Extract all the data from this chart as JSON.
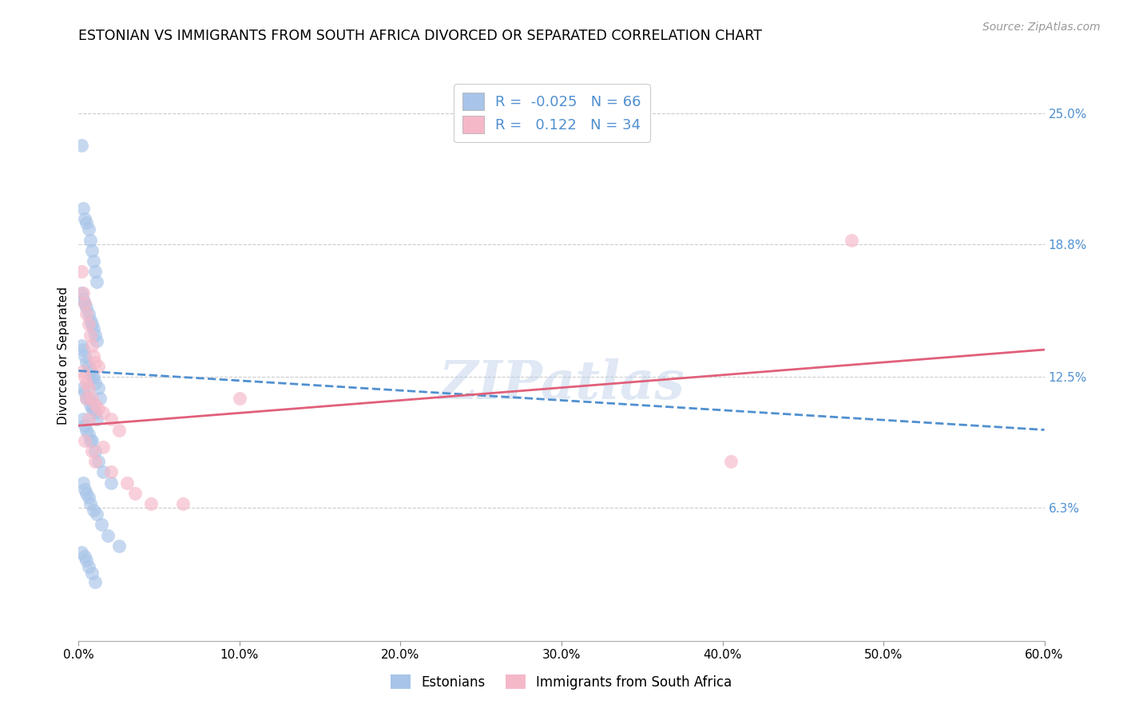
{
  "title": "ESTONIAN VS IMMIGRANTS FROM SOUTH AFRICA DIVORCED OR SEPARATED CORRELATION CHART",
  "source": "Source: ZipAtlas.com",
  "xlabel_ticks": [
    "0.0%",
    "10.0%",
    "20.0%",
    "30.0%",
    "40.0%",
    "50.0%",
    "60.0%"
  ],
  "xlabel_tick_vals": [
    0.0,
    10.0,
    20.0,
    30.0,
    40.0,
    50.0,
    60.0
  ],
  "ylabel_ticks": [
    "6.3%",
    "12.5%",
    "18.8%",
    "25.0%"
  ],
  "ylabel_tick_vals": [
    6.3,
    12.5,
    18.8,
    25.0
  ],
  "xlim": [
    0,
    60
  ],
  "ylim": [
    0,
    27
  ],
  "ylabel": "Divorced or Separated",
  "legend_labels": [
    "Estonians",
    "Immigrants from South Africa"
  ],
  "R_estonian": -0.025,
  "N_estonian": 66,
  "R_immigrant": 0.122,
  "N_immigrant": 34,
  "blue_color": "#a8c4e8",
  "pink_color": "#f5b8c8",
  "blue_line_color": "#5090d0",
  "pink_line_color": "#e0607a",
  "watermark": "ZIPatlas",
  "estonian_x": [
    0.2,
    0.3,
    0.4,
    0.5,
    0.6,
    0.7,
    0.8,
    0.9,
    1.0,
    1.1,
    0.2,
    0.3,
    0.4,
    0.5,
    0.6,
    0.7,
    0.8,
    0.9,
    1.0,
    1.1,
    0.2,
    0.3,
    0.4,
    0.5,
    0.6,
    0.7,
    0.8,
    0.9,
    1.0,
    1.2,
    0.3,
    0.4,
    0.5,
    0.6,
    0.7,
    0.8,
    0.9,
    1.0,
    1.1,
    1.3,
    0.3,
    0.4,
    0.5,
    0.6,
    0.7,
    0.8,
    1.0,
    1.2,
    1.5,
    2.0,
    0.3,
    0.4,
    0.5,
    0.6,
    0.7,
    0.9,
    1.1,
    1.4,
    1.8,
    2.5,
    0.2,
    0.4,
    0.5,
    0.6,
    0.8,
    1.0
  ],
  "estonian_y": [
    23.5,
    20.5,
    20.0,
    19.8,
    19.5,
    19.0,
    18.5,
    18.0,
    17.5,
    17.0,
    16.5,
    16.2,
    16.0,
    15.8,
    15.5,
    15.2,
    15.0,
    14.8,
    14.5,
    14.2,
    14.0,
    13.8,
    13.5,
    13.2,
    13.0,
    12.8,
    12.5,
    12.5,
    12.2,
    12.0,
    12.0,
    11.8,
    11.5,
    11.5,
    11.2,
    11.0,
    11.0,
    10.8,
    10.5,
    11.5,
    10.5,
    10.2,
    10.0,
    9.8,
    9.5,
    9.5,
    9.0,
    8.5,
    8.0,
    7.5,
    7.5,
    7.2,
    7.0,
    6.8,
    6.5,
    6.2,
    6.0,
    5.5,
    5.0,
    4.5,
    4.2,
    4.0,
    3.8,
    3.5,
    3.2,
    2.8
  ],
  "immigrant_x": [
    0.2,
    0.3,
    0.4,
    0.5,
    0.6,
    0.7,
    0.8,
    0.9,
    1.0,
    1.2,
    0.3,
    0.4,
    0.5,
    0.6,
    0.8,
    1.0,
    1.2,
    1.5,
    2.0,
    2.5,
    0.4,
    0.5,
    0.6,
    0.8,
    1.0,
    1.5,
    2.0,
    3.0,
    3.5,
    4.5,
    40.5,
    10.0,
    48.0,
    6.5
  ],
  "immigrant_y": [
    17.5,
    16.5,
    16.0,
    15.5,
    15.0,
    14.5,
    14.0,
    13.5,
    13.2,
    13.0,
    12.8,
    12.5,
    12.2,
    12.0,
    11.5,
    11.2,
    11.0,
    10.8,
    10.5,
    10.0,
    9.5,
    11.5,
    10.5,
    9.0,
    8.5,
    9.2,
    8.0,
    7.5,
    7.0,
    6.5,
    8.5,
    11.5,
    19.0,
    6.5
  ],
  "est_trend_x0": 0,
  "est_trend_y0": 12.8,
  "est_trend_x1": 60,
  "est_trend_y1": 10.0,
  "imm_trend_x0": 0,
  "imm_trend_y0": 10.2,
  "imm_trend_x1": 60,
  "imm_trend_y1": 13.8
}
